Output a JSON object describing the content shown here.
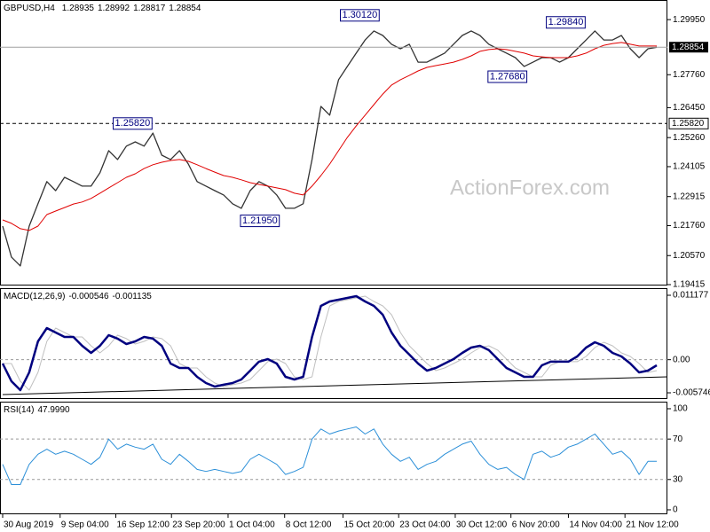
{
  "chart_data": [
    {
      "type": "line",
      "title": "GBPUSD,H4",
      "ohlc": [
        1.28935,
        1.28992,
        1.28817,
        1.28854
      ],
      "watermark": "ActionForex.com",
      "xlim": [
        -0.3,
        75.2
      ],
      "ylim": [
        1.1938,
        1.3073
      ],
      "yticks": [
        {
          "value": 1.2995,
          "label": "1.29950"
        },
        {
          "value": 1.2776,
          "label": "1.27760"
        },
        {
          "value": 1.2645,
          "label": "1.26450"
        },
        {
          "value": 1.2526,
          "label": "1.25260"
        },
        {
          "value": 1.24105,
          "label": "1.24105"
        },
        {
          "value": 1.22915,
          "label": "1.22915"
        },
        {
          "value": 1.2176,
          "label": "1.21760"
        },
        {
          "value": 1.2057,
          "label": "1.20570"
        },
        {
          "value": 1.19415,
          "label": "1.19415"
        }
      ],
      "last_price": 1.28854,
      "level": {
        "value": 1.2582,
        "label": "1.25820"
      },
      "annotations": [
        {
          "x": 40.4,
          "value": 1.3012,
          "label": "1.30120"
        },
        {
          "x": 63.7,
          "value": 1.2984,
          "label": "1.29840"
        },
        {
          "x": 57.1,
          "value": 1.2768,
          "label": "1.27680"
        },
        {
          "x": 14.7,
          "value": 1.2582,
          "label": "1.25820"
        },
        {
          "x": 29.1,
          "value": 1.2195,
          "label": "1.21950"
        }
      ],
      "series": [
        {
          "color": "#333333",
          "values": [
            1.2174,
            1.2051,
            1.2016,
            1.2174,
            1.2263,
            1.2351,
            1.2315,
            1.2368,
            1.2351,
            1.2333,
            1.2333,
            1.2386,
            1.2474,
            1.2439,
            1.2492,
            1.2509,
            1.2492,
            1.2544,
            1.2456,
            1.2439,
            1.2474,
            1.2421,
            1.2351,
            1.2333,
            1.2315,
            1.2298,
            1.2263,
            1.2245,
            1.2315,
            1.2351,
            1.2333,
            1.2298,
            1.2245,
            1.2245,
            1.2263,
            1.2439,
            1.265,
            1.2615,
            1.2756,
            1.2809,
            1.2862,
            1.2914,
            1.295,
            1.2932,
            1.2897,
            1.2879,
            1.2897,
            1.2826,
            1.2826,
            1.2844,
            1.2862,
            1.2897,
            1.2932,
            1.295,
            1.2932,
            1.2897,
            1.2879,
            1.2862,
            1.2844,
            1.2809,
            1.2826,
            1.2844,
            1.2844,
            1.2826,
            1.2844,
            1.2879,
            1.2914,
            1.295,
            1.2914,
            1.2914,
            1.2932,
            1.2879,
            1.2844,
            1.2879,
            1.2885
          ]
        },
        {
          "color": "#e00000",
          "values": [
            1.2199,
            1.2185,
            1.2164,
            1.2157,
            1.2174,
            1.222,
            1.2234,
            1.2248,
            1.2262,
            1.227,
            1.2284,
            1.2305,
            1.2326,
            1.2347,
            1.2368,
            1.2382,
            1.2403,
            1.2418,
            1.2428,
            1.2435,
            1.2439,
            1.2432,
            1.2418,
            1.2403,
            1.2389,
            1.2375,
            1.2368,
            1.2358,
            1.2347,
            1.234,
            1.2333,
            1.2326,
            1.2319,
            1.2305,
            1.2298,
            1.2333,
            1.2375,
            1.2421,
            1.2474,
            1.2527,
            1.2573,
            1.2615,
            1.2657,
            1.2699,
            1.2735,
            1.2756,
            1.2773,
            1.2791,
            1.2805,
            1.2812,
            1.2819,
            1.2826,
            1.2837,
            1.2851,
            1.2869,
            1.2876,
            1.2879,
            1.2876,
            1.2869,
            1.2862,
            1.2851,
            1.2847,
            1.2844,
            1.2844,
            1.2844,
            1.2851,
            1.2862,
            1.2879,
            1.2893,
            1.29,
            1.2904,
            1.2897,
            1.289,
            1.289,
            1.289
          ]
        }
      ]
    },
    {
      "type": "line",
      "title": "MACD(12,26,9)",
      "readings": [
        -0.000546,
        -0.001135
      ],
      "xlim": [
        -0.3,
        75.2
      ],
      "ylim": [
        -0.00682,
        0.01241
      ],
      "yticks": [
        0.011177,
        {
          "value": 0,
          "label": "0.00"
        },
        -0.005746
      ],
      "levels": [
        0
      ],
      "series": [
        {
          "color": "#c0c0c0",
          "values": [
            -0.00066,
            -0.00066,
            -0.00374,
            -0.00528,
            -0.0022,
            0.00318,
            0.00549,
            0.00472,
            0.00395,
            0.00395,
            0.00241,
            0.00118,
            0.00241,
            0.00426,
            0.00365,
            0.00272,
            0.00318,
            0.00395,
            0.00365,
            0.00241,
            -0.00066,
            -0.00143,
            -0.00143,
            -0.00297,
            -0.00405,
            -0.00466,
            -0.00435,
            -0.00405,
            -0.00343,
            -0.00189,
            -0.00035,
            0.00011,
            -0.00066,
            -0.00297,
            -0.00343,
            -0.00297,
            0.00395,
            0.00934,
            0.01011,
            0.01041,
            0.01072,
            0.01103,
            0.01011,
            0.00934,
            0.0078,
            0.00472,
            0.00241,
            0.00088,
            -0.00066,
            -0.00189,
            -0.00143,
            -0.00066,
            0.00011,
            0.00118,
            0.00211,
            0.00241,
            0.00165,
            0.00011,
            -0.00143,
            -0.0022,
            -0.00297,
            -0.00297,
            -0.00097,
            -0.00035,
            -0.00035,
            -0.00035,
            0.00057,
            0.00211,
            0.00303,
            0.00241,
            0.00118,
            0.00057,
            -0.00066,
            -0.0022,
            -0.00189
          ]
        },
        {
          "color": "#00007f",
          "values": [
            -0.00066,
            -0.00374,
            -0.00528,
            -0.0022,
            0.00318,
            0.00549,
            0.00472,
            0.00395,
            0.00395,
            0.00241,
            0.00118,
            0.00241,
            0.00426,
            0.00365,
            0.00272,
            0.00318,
            0.00395,
            0.00365,
            0.00241,
            -0.00066,
            -0.00143,
            -0.00143,
            -0.00297,
            -0.00405,
            -0.00466,
            -0.00435,
            -0.00405,
            -0.00343,
            -0.00189,
            -0.00035,
            0.00011,
            -0.00066,
            -0.00297,
            -0.00343,
            -0.00297,
            0.00395,
            0.00934,
            0.01011,
            0.01041,
            0.01072,
            0.01103,
            0.01011,
            0.00934,
            0.0078,
            0.00472,
            0.00241,
            0.00088,
            -0.00066,
            -0.00189,
            -0.00143,
            -0.00066,
            0.00011,
            0.00118,
            0.00211,
            0.00241,
            0.00165,
            0.00011,
            -0.00143,
            -0.0022,
            -0.00297,
            -0.00297,
            -0.00097,
            -0.00035,
            -0.00035,
            -0.00035,
            0.00057,
            0.00211,
            0.00303,
            0.00241,
            0.00118,
            0.00057,
            -0.00066,
            -0.0022,
            -0.00189,
            -0.00097
          ]
        }
      ]
    },
    {
      "type": "line",
      "title": "RSI(14)",
      "reading": {
        "value": 47.999,
        "label": "47.9990"
      },
      "xlim": [
        -0.3,
        75.2
      ],
      "ylim": [
        -4.4,
        107
      ],
      "yticks": [
        100,
        70,
        30,
        0
      ],
      "levels": [
        70,
        30
      ],
      "xticks": [
        {
          "value": 0,
          "label": "30 Aug 2019"
        },
        {
          "value": 6.5,
          "label": "9 Sep 04:00"
        },
        {
          "value": 12.8,
          "label": "16 Sep 12:00"
        },
        {
          "value": 19.1,
          "label": "23 Sep 20:00"
        },
        {
          "value": 25.5,
          "label": "1 Oct 04:00"
        },
        {
          "value": 31.9,
          "label": "8 Oct 12:00"
        },
        {
          "value": 38.5,
          "label": "15 Oct 20:00"
        },
        {
          "value": 44.8,
          "label": "23 Oct 04:00"
        },
        {
          "value": 51.2,
          "label": "30 Oct 12:00"
        },
        {
          "value": 57.5,
          "label": "6 Nov 20:00"
        },
        {
          "value": 64,
          "label": "14 Nov 04:00"
        },
        {
          "value": 70.4,
          "label": "21 Nov 12:00"
        }
      ],
      "series": [
        {
          "color": "#2b8fd8",
          "values": [
            45,
            25,
            25,
            45,
            55,
            60,
            55,
            58,
            55,
            50,
            45,
            52,
            70,
            60,
            65,
            62,
            60,
            65,
            50,
            45,
            55,
            48,
            40,
            38,
            40,
            38,
            36,
            38,
            50,
            55,
            50,
            45,
            35,
            38,
            42,
            70,
            80,
            75,
            78,
            80,
            82,
            75,
            80,
            65,
            55,
            48,
            52,
            40,
            45,
            48,
            55,
            60,
            65,
            68,
            55,
            45,
            40,
            42,
            35,
            30,
            55,
            58,
            52,
            55,
            62,
            65,
            70,
            75,
            65,
            55,
            58,
            50,
            35,
            48,
            48
          ]
        }
      ]
    }
  ]
}
